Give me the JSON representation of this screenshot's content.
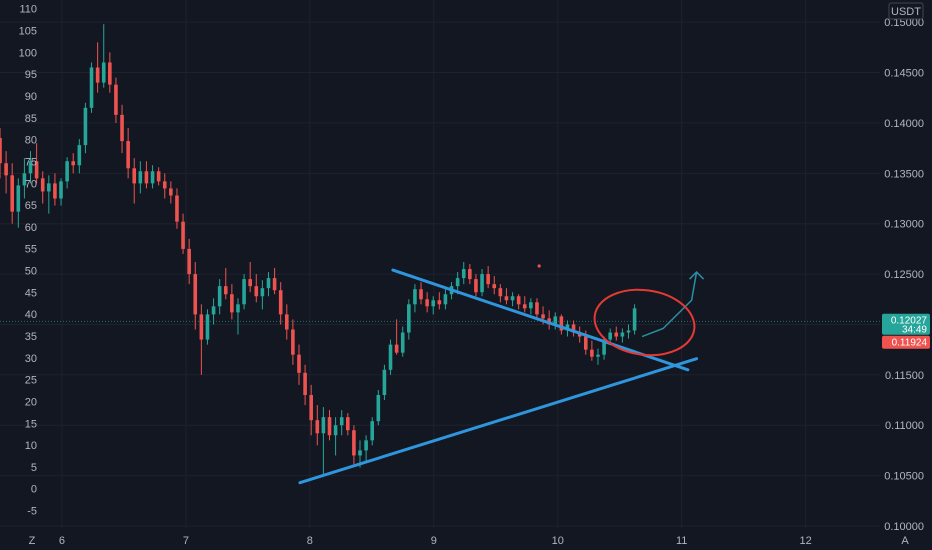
{
  "chart_data": {
    "type": "candlestick",
    "currency_label": "USDT",
    "left_scale": {
      "range": [
        -9,
        112
      ],
      "ticks": [
        -5,
        0,
        5,
        10,
        15,
        20,
        25,
        30,
        35,
        40,
        45,
        50,
        55,
        60,
        65,
        70,
        75,
        80,
        85,
        90,
        95,
        100,
        105,
        110
      ]
    },
    "right_scale": {
      "range": [
        0.0998,
        0.1522
      ],
      "ticks": [
        "0.10000",
        "0.10500",
        "0.11000",
        "0.11500",
        "0.12000",
        "0.12500",
        "0.13000",
        "0.13500",
        "0.14000",
        "0.14500",
        "0.15000"
      ]
    },
    "x_axis": {
      "range": [
        5.5,
        12.6
      ],
      "ticks": [
        "6",
        "7",
        "8",
        "9",
        "10",
        "11",
        "12"
      ]
    },
    "corner_labels": {
      "left": "Z",
      "right": "A"
    },
    "price_badges": [
      {
        "value": "0.12027",
        "countdown": "34:49",
        "color": "#26a69a",
        "price": 0.12027
      },
      {
        "value": "0.11924",
        "color": "#ef5350",
        "price": 0.11924
      }
    ],
    "current_price_line": 0.1203,
    "up_color": "#26a69a",
    "down_color": "#ef5350",
    "ohlc": [
      [
        0.1385,
        0.1395,
        0.1345,
        0.136
      ],
      [
        0.136,
        0.1372,
        0.133,
        0.1348
      ],
      [
        0.1348,
        0.136,
        0.13,
        0.1312
      ],
      [
        0.1312,
        0.1345,
        0.1296,
        0.1338
      ],
      [
        0.1338,
        0.1365,
        0.1325,
        0.135
      ],
      [
        0.135,
        0.1372,
        0.134,
        0.1362
      ],
      [
        0.1362,
        0.138,
        0.134,
        0.1345
      ],
      [
        0.1345,
        0.1352,
        0.132,
        0.1332
      ],
      [
        0.1332,
        0.1348,
        0.131,
        0.134
      ],
      [
        0.134,
        0.135,
        0.1318,
        0.1325
      ],
      [
        0.1325,
        0.1345,
        0.1318,
        0.1342
      ],
      [
        0.1342,
        0.1366,
        0.1335,
        0.1362
      ],
      [
        0.1362,
        0.137,
        0.135,
        0.1358
      ],
      [
        0.1358,
        0.1384,
        0.135,
        0.1378
      ],
      [
        0.1378,
        0.142,
        0.137,
        0.1415
      ],
      [
        0.1415,
        0.146,
        0.141,
        0.1455
      ],
      [
        0.1455,
        0.148,
        0.143,
        0.144
      ],
      [
        0.144,
        0.1498,
        0.1435,
        0.146
      ],
      [
        0.146,
        0.147,
        0.143,
        0.1438
      ],
      [
        0.1438,
        0.1445,
        0.14,
        0.1408
      ],
      [
        0.1408,
        0.1418,
        0.137,
        0.1382
      ],
      [
        0.1382,
        0.1395,
        0.1345,
        0.1355
      ],
      [
        0.1355,
        0.1365,
        0.132,
        0.134
      ],
      [
        0.134,
        0.1362,
        0.133,
        0.1352
      ],
      [
        0.1352,
        0.1362,
        0.1335,
        0.134
      ],
      [
        0.134,
        0.1358,
        0.1335,
        0.1352
      ],
      [
        0.1352,
        0.1356,
        0.1338,
        0.1342
      ],
      [
        0.1342,
        0.135,
        0.1325,
        0.1335
      ],
      [
        0.1335,
        0.1342,
        0.132,
        0.1328
      ],
      [
        0.1328,
        0.1335,
        0.1295,
        0.1302
      ],
      [
        0.1302,
        0.131,
        0.127,
        0.1275
      ],
      [
        0.1275,
        0.1285,
        0.124,
        0.125
      ],
      [
        0.125,
        0.1262,
        0.1195,
        0.121
      ],
      [
        0.121,
        0.122,
        0.115,
        0.1185
      ],
      [
        0.1185,
        0.1215,
        0.118,
        0.121
      ],
      [
        0.121,
        0.1226,
        0.12,
        0.1218
      ],
      [
        0.1218,
        0.1245,
        0.121,
        0.1238
      ],
      [
        0.1238,
        0.1256,
        0.1225,
        0.123
      ],
      [
        0.123,
        0.124,
        0.1205,
        0.1212
      ],
      [
        0.1212,
        0.1226,
        0.119,
        0.122
      ],
      [
        0.122,
        0.125,
        0.1215,
        0.1245
      ],
      [
        0.1245,
        0.1262,
        0.1232,
        0.1238
      ],
      [
        0.1238,
        0.125,
        0.1222,
        0.1228
      ],
      [
        0.1228,
        0.1244,
        0.1215,
        0.1236
      ],
      [
        0.1236,
        0.1252,
        0.1228,
        0.1246
      ],
      [
        0.1246,
        0.1256,
        0.123,
        0.1234
      ],
      [
        0.1234,
        0.1242,
        0.12,
        0.121
      ],
      [
        0.121,
        0.122,
        0.1185,
        0.1195
      ],
      [
        0.1195,
        0.1205,
        0.116,
        0.117
      ],
      [
        0.117,
        0.118,
        0.114,
        0.1152
      ],
      [
        0.1152,
        0.116,
        0.112,
        0.113
      ],
      [
        0.113,
        0.114,
        0.109,
        0.1105
      ],
      [
        0.1105,
        0.112,
        0.108,
        0.1092
      ],
      [
        0.1092,
        0.1118,
        0.105,
        0.1108
      ],
      [
        0.1108,
        0.1115,
        0.1085,
        0.109
      ],
      [
        0.109,
        0.1108,
        0.107,
        0.11
      ],
      [
        0.11,
        0.1115,
        0.109,
        0.1108
      ],
      [
        0.1108,
        0.1112,
        0.109,
        0.1095
      ],
      [
        0.1095,
        0.11,
        0.106,
        0.107
      ],
      [
        0.107,
        0.1085,
        0.1058,
        0.1075
      ],
      [
        0.1075,
        0.109,
        0.1065,
        0.1085
      ],
      [
        0.1085,
        0.1108,
        0.108,
        0.1104
      ],
      [
        0.1104,
        0.1135,
        0.11,
        0.113
      ],
      [
        0.113,
        0.116,
        0.1125,
        0.1155
      ],
      [
        0.1155,
        0.1185,
        0.115,
        0.118
      ],
      [
        0.118,
        0.1205,
        0.117,
        0.1172
      ],
      [
        0.1172,
        0.1198,
        0.1168,
        0.1192
      ],
      [
        0.1192,
        0.1225,
        0.1185,
        0.122
      ],
      [
        0.122,
        0.124,
        0.1212,
        0.1235
      ],
      [
        0.1235,
        0.1242,
        0.122,
        0.1225
      ],
      [
        0.1225,
        0.1232,
        0.1212,
        0.1218
      ],
      [
        0.1218,
        0.1228,
        0.121,
        0.1224
      ],
      [
        0.1224,
        0.1232,
        0.1215,
        0.122
      ],
      [
        0.122,
        0.1236,
        0.1215,
        0.123
      ],
      [
        0.123,
        0.1242,
        0.1225,
        0.1238
      ],
      [
        0.1238,
        0.1252,
        0.123,
        0.1246
      ],
      [
        0.1246,
        0.1262,
        0.124,
        0.1255
      ],
      [
        0.1255,
        0.126,
        0.124,
        0.1245
      ],
      [
        0.1245,
        0.125,
        0.1228,
        0.1232
      ],
      [
        0.1232,
        0.1255,
        0.1228,
        0.125
      ],
      [
        0.125,
        0.1258,
        0.1236,
        0.124
      ],
      [
        0.124,
        0.1248,
        0.123,
        0.1236
      ],
      [
        0.1236,
        0.124,
        0.1222,
        0.1228
      ],
      [
        0.1228,
        0.1236,
        0.122,
        0.1224
      ],
      [
        0.1224,
        0.1232,
        0.1218,
        0.1228
      ],
      [
        0.1228,
        0.123,
        0.1215,
        0.122
      ],
      [
        0.122,
        0.1228,
        0.1212,
        0.1216
      ],
      [
        0.1216,
        0.1226,
        0.121,
        0.1222
      ],
      [
        0.1222,
        0.1226,
        0.1205,
        0.121
      ],
      [
        0.121,
        0.1218,
        0.12,
        0.1206
      ],
      [
        0.1206,
        0.1214,
        0.1195,
        0.12
      ],
      [
        0.12,
        0.1212,
        0.1195,
        0.1208
      ],
      [
        0.1208,
        0.121,
        0.119,
        0.1194
      ],
      [
        0.1194,
        0.1204,
        0.1188,
        0.12
      ],
      [
        0.12,
        0.1204,
        0.1188,
        0.1192
      ],
      [
        0.1192,
        0.1198,
        0.1182,
        0.1188
      ],
      [
        0.1188,
        0.1194,
        0.117,
        0.1175
      ],
      [
        0.1175,
        0.1184,
        0.1164,
        0.1168
      ],
      [
        0.1168,
        0.1176,
        0.116,
        0.117
      ],
      [
        0.117,
        0.1188,
        0.1165,
        0.1185
      ],
      [
        0.1185,
        0.1196,
        0.118,
        0.1192
      ],
      [
        0.1192,
        0.1198,
        0.1184,
        0.1188
      ],
      [
        0.1188,
        0.1196,
        0.1182,
        0.1192
      ],
      [
        0.1192,
        0.12,
        0.1186,
        0.1194
      ],
      [
        0.1194,
        0.122,
        0.119,
        0.1216
      ]
    ],
    "drawings": {
      "descending_trendline": {
        "x": [
          8.67,
          11.05
        ],
        "y": [
          0.1254,
          0.1155
        ]
      },
      "ascending_trendline": {
        "x": [
          7.92,
          11.12
        ],
        "y": [
          0.1043,
          0.1166
        ]
      },
      "projection_arrow": {
        "x": [
          10.68,
          10.85,
          11.08,
          11.12
        ],
        "y": [
          0.1188,
          0.1196,
          0.1224,
          0.1252
        ]
      },
      "circle_highlight": {
        "center": [
          10.7,
          0.1202
        ],
        "span_x": 0.81,
        "span_y": 0.0064
      },
      "dot": {
        "x": 9.85,
        "y": 0.1258
      }
    }
  }
}
